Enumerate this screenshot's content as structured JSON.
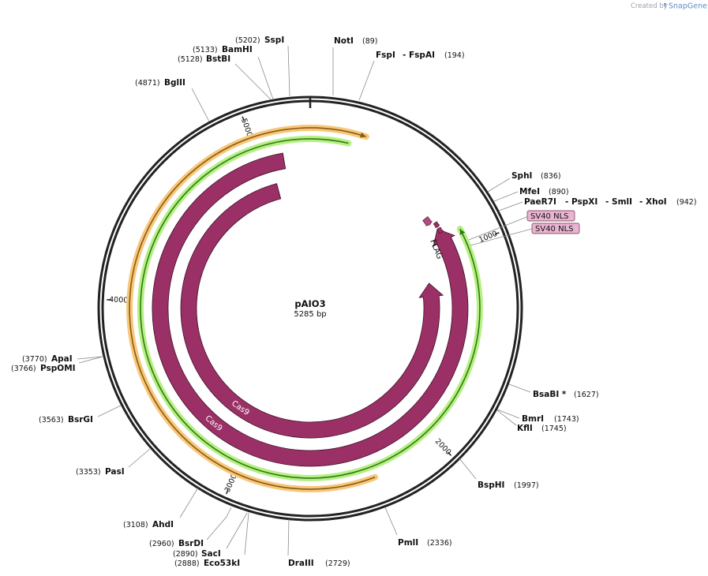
{
  "credit": {
    "created_by": "Created by",
    "brand": "SnapGene"
  },
  "plasmid": {
    "name": "pAIO3",
    "size_label": "5285 bp",
    "length": 5285
  },
  "ticks": [
    {
      "label": "1000",
      "pos": 1000
    },
    {
      "label": "2000",
      "pos": 2000
    },
    {
      "label": "3000",
      "pos": 3000
    },
    {
      "label": "4000",
      "pos": 4000
    },
    {
      "label": "5000",
      "pos": 5000
    }
  ],
  "sites": [
    {
      "key": "noti",
      "name": "NotI",
      "pos_label": "(89)",
      "pos": 89
    },
    {
      "key": "fspi",
      "name": "FspI",
      "name2": "- FspAI",
      "pos_label": "(194)",
      "pos": 194
    },
    {
      "key": "sphi",
      "name": "SphI",
      "pos_label": "(836)",
      "pos": 836
    },
    {
      "key": "mfei",
      "name": "MfeI",
      "pos_label": "(890)",
      "pos": 890
    },
    {
      "key": "paer7i",
      "name": "PaeR7I",
      "name2": "- PspXI",
      "name3": "- SmlI",
      "name4": "- XhoI",
      "pos_label": "(942)",
      "pos": 942
    },
    {
      "key": "bsabi",
      "name": "BsaBI *",
      "pos_label": "(1627)",
      "pos": 1627
    },
    {
      "key": "bmri",
      "name": "BmrI",
      "pos_label": "(1743)",
      "pos": 1743
    },
    {
      "key": "kfli",
      "name": "KflI",
      "pos_label": "(1745)",
      "pos": 1745
    },
    {
      "key": "bsphi",
      "name": "BspHI",
      "pos_label": "(1997)",
      "pos": 1997
    },
    {
      "key": "pmli",
      "name": "PmlI",
      "pos_label": "(2336)",
      "pos": 2336
    },
    {
      "key": "draiii",
      "name": "DraIII",
      "pos_label": "(2729)",
      "pos": 2729
    },
    {
      "key": "eco53ki",
      "name": "Eco53kI",
      "pos_label": "(2888)",
      "pos": 2888
    },
    {
      "key": "saci",
      "name": "SacI",
      "pos_label": "(2890)",
      "pos": 2890
    },
    {
      "key": "bsrdi",
      "name": "BsrDI",
      "pos_label": "(2960)",
      "pos": 2960
    },
    {
      "key": "ahdi",
      "name": "AhdI",
      "pos_label": "(3108)",
      "pos": 3108
    },
    {
      "key": "pasi",
      "name": "PasI",
      "pos_label": "(3353)",
      "pos": 3353
    },
    {
      "key": "bsrgi",
      "name": "BsrGI",
      "pos_label": "(3563)",
      "pos": 3563
    },
    {
      "key": "pspomi",
      "name": "PspOMI",
      "pos_label": "(3766)",
      "pos": 3766
    },
    {
      "key": "apai",
      "name": "ApaI",
      "pos_label": "(3770)",
      "pos": 3770
    },
    {
      "key": "bglii",
      "name": "BglII",
      "pos_label": "(4871)",
      "pos": 4871
    },
    {
      "key": "bstbi",
      "name": "BstBI",
      "pos_label": "(5128)",
      "pos": 5128
    },
    {
      "key": "bamhi",
      "name": "BamHI",
      "pos_label": "(5133)",
      "pos": 5133
    },
    {
      "key": "sspi",
      "name": "SspI",
      "pos_label": "(5202)",
      "pos": 5202
    }
  ],
  "features": {
    "cas9_label": "Cas9",
    "cas9_label_2": "Cas9",
    "flag_label": "FLAG",
    "sv40_nls_1": "SV40 NLS",
    "sv40_nls_2": "SV40 NLS"
  },
  "colors": {
    "backbone": "#222222",
    "feature": "#9a3066",
    "orf_green": "#2f7a12",
    "orf_green_glow": "#b6ef84",
    "orf_orange": "#8a5a12",
    "orf_orange_glow": "#f7c77a",
    "nls_box": "#e8b4cf"
  }
}
